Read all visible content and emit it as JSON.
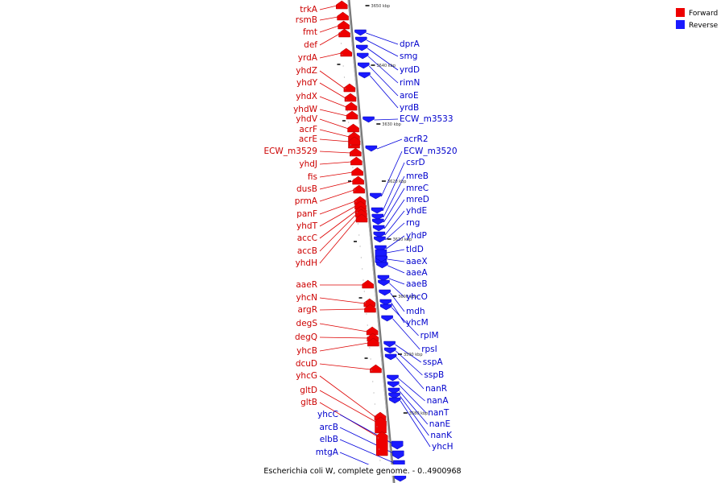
{
  "caption": "Escherichia coli W, complete genome. - 0..4900968",
  "legend": [
    {
      "label": "Forward",
      "color": "#ee0000"
    },
    {
      "label": "Reverse",
      "color": "#1a1aff"
    }
  ],
  "ticks": [
    "3650 kbp",
    "3640 kbp",
    "3630 kbp",
    "3620 kbp",
    "3610 kbp",
    "3600 kbp",
    "3590 kbp",
    "3580 kbp"
  ],
  "forward_genes": [
    "trkA",
    "rsmB",
    "fmt",
    "def",
    "yrdA",
    "yhdZ",
    "yhdY",
    "yhdX",
    "yhdW",
    "yhdV",
    "acrF",
    "acrE",
    "ECW_m3529",
    "yhdJ",
    "fis",
    "dusB",
    "prmA",
    "panF",
    "yhdT",
    "accC",
    "accB",
    "yhdH",
    "aaeR",
    "yhcN",
    "argR",
    "degS",
    "degQ",
    "yhcB",
    "dcuD",
    "yhcG",
    "gltD",
    "gltB"
  ],
  "reverse_genes_left": [
    "yhcC",
    "arcB",
    "elbB",
    "mtgA"
  ],
  "reverse_genes": [
    "dprA",
    "smg",
    "yrdD",
    "rimN",
    "aroE",
    "yrdB",
    "ECW_m3533",
    "acrR2",
    "ECW_m3520",
    "csrD",
    "mreB",
    "mreC",
    "mreD",
    "yhdE",
    "rng",
    "yhdP",
    "tldD",
    "aaeX",
    "aaeA",
    "aaeB",
    "yhcO",
    "mdh",
    "yhcM",
    "rplM",
    "rpsI",
    "sspA",
    "sspB",
    "nanR",
    "nanA",
    "nanT",
    "nanE",
    "nanK",
    "yhcH"
  ]
}
